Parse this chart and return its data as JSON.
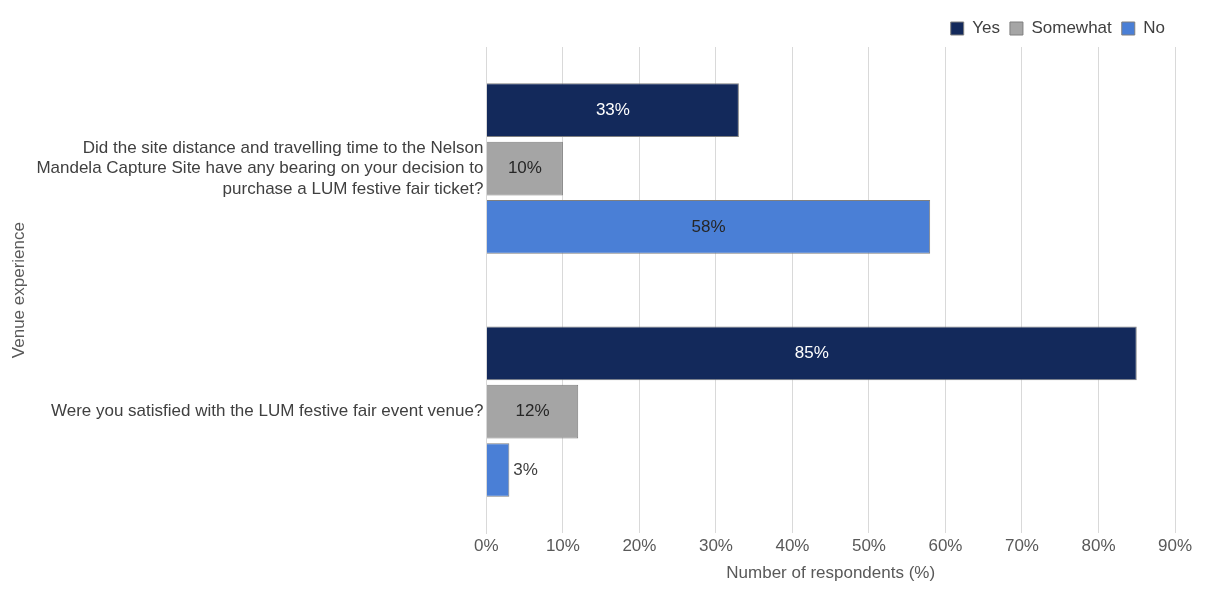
{
  "chart_data": {
    "type": "bar",
    "orientation": "horizontal",
    "ylabel": "Venue experience",
    "xlabel": "Number of respondents (%)",
    "categories": [
      "Did the site distance and travelling time to the Nelson Mandela Capture Site have any bearing on your decision to purchase a LUM festive fair ticket?",
      "Were you satisfied with the LUM festive fair event venue?"
    ],
    "series": [
      {
        "name": "Yes",
        "color": "#13295b",
        "values": [
          33,
          85
        ]
      },
      {
        "name": "Somewhat",
        "color": "#a5a5a5",
        "values": [
          10,
          12
        ]
      },
      {
        "name": "No",
        "color": "#4a7fd6",
        "values": [
          58,
          3
        ]
      }
    ],
    "xlim": [
      0,
      90
    ],
    "xticks": [
      {
        "value": 0,
        "label": "0%"
      },
      {
        "value": 10,
        "label": "10%"
      },
      {
        "value": 20,
        "label": "20%"
      },
      {
        "value": 30,
        "label": "30%"
      },
      {
        "value": 40,
        "label": "40%"
      },
      {
        "value": 50,
        "label": "50%"
      },
      {
        "value": 60,
        "label": "60%"
      },
      {
        "value": 70,
        "label": "70%"
      },
      {
        "value": 80,
        "label": "80%"
      },
      {
        "value": 90,
        "label": "90%"
      }
    ],
    "value_labels": [
      [
        "33%",
        "85%"
      ],
      [
        "10%",
        "12%"
      ],
      [
        "58%",
        "3%"
      ]
    ],
    "grid": "x",
    "legend": "top right"
  }
}
